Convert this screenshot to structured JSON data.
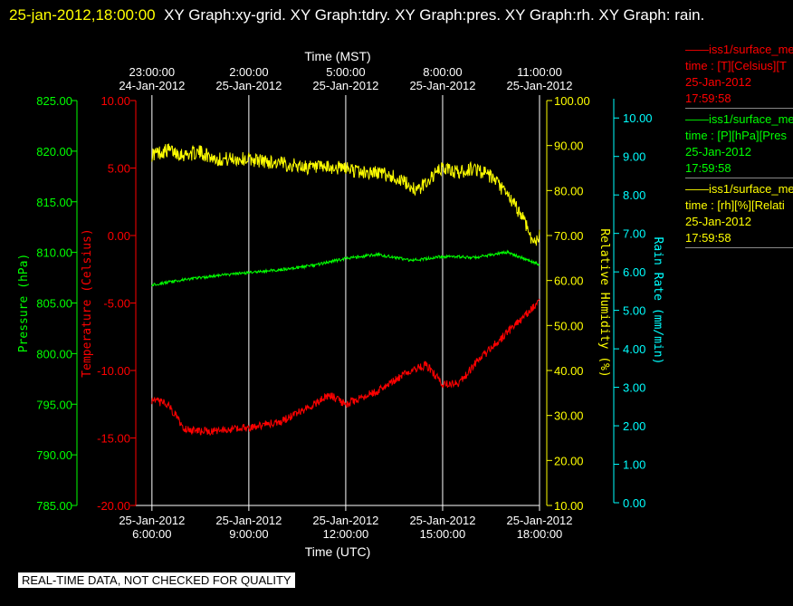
{
  "header": {
    "timestamp": "25-jan-2012,18:00:00",
    "text": "XY Graph:xy-grid.  XY Graph:tdry.  XY Graph:pres.  XY Graph:rh.  XY Graph: rain."
  },
  "legend": [
    {
      "title": "——iss1/surface_me",
      "line1": "time : [T][Celsius][T",
      "line2": "25-Jan-2012",
      "line3": "17:59:58",
      "color": "#ff0000"
    },
    {
      "title": "——iss1/surface_me",
      "line1": "time : [P][hPa][Pres",
      "line2": "25-Jan-2012",
      "line3": "17:59:58",
      "color": "#00ff00"
    },
    {
      "title": "——iss1/surface_me",
      "line1": "time : [rh][%][Relati",
      "line2": "25-Jan-2012",
      "line3": "17:59:58",
      "color": "#ffff00"
    }
  ],
  "notice": "REAL-TIME DATA, NOT CHECKED FOR QUALITY",
  "chart_data": {
    "type": "line",
    "grid": true,
    "x_bottom": {
      "label": "Time (UTC)",
      "range": [
        "2012-01-25 05:30",
        "2012-01-25 18:00"
      ],
      "ticks": [
        {
          "date": "25-Jan-2012",
          "time": "6:00:00",
          "value": "2012-01-25 06:00"
        },
        {
          "date": "25-Jan-2012",
          "time": "9:00:00",
          "value": "2012-01-25 09:00"
        },
        {
          "date": "25-Jan-2012",
          "time": "12:00:00",
          "value": "2012-01-25 12:00"
        },
        {
          "date": "25-Jan-2012",
          "time": "15:00:00",
          "value": "2012-01-25 15:00"
        },
        {
          "date": "25-Jan-2012",
          "time": "18:00:00",
          "value": "2012-01-25 18:00"
        }
      ]
    },
    "x_top": {
      "label": "Time (MST)",
      "ticks": [
        {
          "time": "23:00:00",
          "date": "24-Jan-2012"
        },
        {
          "time": "2:00:00",
          "date": "25-Jan-2012"
        },
        {
          "time": "5:00:00",
          "date": "25-Jan-2012"
        },
        {
          "time": "8:00:00",
          "date": "25-Jan-2012"
        },
        {
          "time": "11:00:00",
          "date": "25-Jan-2012"
        }
      ]
    },
    "axes": {
      "pressure": {
        "label": "Pressure (hPa)",
        "range": [
          785,
          825
        ],
        "ticks": [
          "785.00",
          "790.00",
          "795.00",
          "800.00",
          "805.00",
          "810.00",
          "815.00",
          "820.00",
          "825.00"
        ],
        "color": "#00ff00"
      },
      "temperature": {
        "label": "Temperature (Celsius)",
        "range": [
          -20,
          10
        ],
        "ticks": [
          "-20.00",
          "-15.00",
          "-10.00",
          "-5.00",
          "0.00",
          "5.00",
          "10.00"
        ],
        "color": "#ff0000"
      },
      "humidity": {
        "label": "Relative Humidity (%)",
        "range": [
          10,
          100
        ],
        "ticks": [
          "10.00",
          "20.00",
          "30.00",
          "40.00",
          "50.00",
          "60.00",
          "70.00",
          "80.00",
          "90.00",
          "100.00"
        ],
        "color": "#ffff00"
      },
      "rain": {
        "label": "Rain Rate (mm/min)",
        "range": [
          0,
          10.5
        ],
        "ticks": [
          "0.00",
          "1.00",
          "2.00",
          "3.00",
          "4.00",
          "5.00",
          "6.00",
          "7.00",
          "8.00",
          "9.00",
          "10.00"
        ],
        "color": "#00ffff"
      }
    },
    "series": [
      {
        "axis": "humidity",
        "color": "#ffff00",
        "noise": 1.6,
        "x": [
          "2012-01-25 06:00",
          "2012-01-25 06:30",
          "2012-01-25 07:00",
          "2012-01-25 07:30",
          "2012-01-25 08:00",
          "2012-01-25 09:00",
          "2012-01-25 10:00",
          "2012-01-25 11:00",
          "2012-01-25 12:00",
          "2012-01-25 12:30",
          "2012-01-25 13:00",
          "2012-01-25 13:30",
          "2012-01-25 14:00",
          "2012-01-25 14:15",
          "2012-01-25 14:30",
          "2012-01-25 15:00",
          "2012-01-25 15:30",
          "2012-01-25 16:00",
          "2012-01-25 16:30",
          "2012-01-25 17:00",
          "2012-01-25 17:30",
          "2012-01-25 17:50",
          "2012-01-25 18:00"
        ],
        "values": [
          88,
          89,
          88,
          88.5,
          87,
          87,
          86,
          85,
          85,
          84,
          84,
          83,
          81,
          80,
          82,
          85,
          84,
          85,
          83,
          79,
          74,
          68,
          70
        ]
      },
      {
        "axis": "pressure",
        "color": "#00ff00",
        "noise": 0.15,
        "x": [
          "2012-01-25 06:00",
          "2012-01-25 07:00",
          "2012-01-25 08:00",
          "2012-01-25 09:00",
          "2012-01-25 10:00",
          "2012-01-25 11:00",
          "2012-01-25 12:00",
          "2012-01-25 13:00",
          "2012-01-25 14:00",
          "2012-01-25 15:00",
          "2012-01-25 16:00",
          "2012-01-25 17:00",
          "2012-01-25 18:00"
        ],
        "values": [
          806.8,
          807.3,
          807.7,
          808.0,
          808.3,
          808.7,
          809.4,
          809.8,
          809.2,
          809.6,
          809.5,
          810.0,
          808.8
        ]
      },
      {
        "axis": "temperature",
        "color": "#ff0000",
        "noise": 0.3,
        "x": [
          "2012-01-25 06:00",
          "2012-01-25 06:30",
          "2012-01-25 07:00",
          "2012-01-25 07:30",
          "2012-01-25 08:00",
          "2012-01-25 09:00",
          "2012-01-25 10:00",
          "2012-01-25 11:00",
          "2012-01-25 11:30",
          "2012-01-25 12:00",
          "2012-01-25 13:00",
          "2012-01-25 14:00",
          "2012-01-25 14:30",
          "2012-01-25 15:00",
          "2012-01-25 15:30",
          "2012-01-25 16:00",
          "2012-01-25 17:00",
          "2012-01-25 18:00"
        ],
        "values": [
          -12.2,
          -12.5,
          -14.3,
          -14.5,
          -14.5,
          -14.2,
          -13.8,
          -12.5,
          -11.8,
          -12.5,
          -11.5,
          -10.0,
          -9.6,
          -11.0,
          -11.0,
          -9.5,
          -7.2,
          -4.9
        ]
      },
      {
        "axis": "rain",
        "color": "#00ffff",
        "noise": 0,
        "x": [],
        "values": []
      }
    ]
  }
}
